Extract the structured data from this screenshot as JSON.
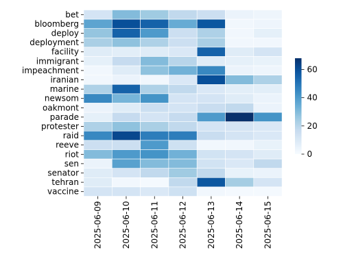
{
  "chart_data": {
    "type": "heatmap",
    "title": "",
    "xlabel": "",
    "ylabel": "",
    "colormap": "Blues",
    "rows": [
      "bet",
      "bloomberg",
      "deploy",
      "deployment",
      "facility",
      "immigrant",
      "impeachment",
      "iranian",
      "marine",
      "newsom",
      "oakmont",
      "parade",
      "protester",
      "raid",
      "reeve",
      "riot",
      "sen",
      "senator",
      "tehran",
      "vaccine"
    ],
    "columns": [
      "2025-06-09",
      "2025-06-10",
      "2025-06-11",
      "2025-06-12",
      "2025-06-13",
      "2025-06-14",
      "2025-06-15"
    ],
    "values": [
      [
        12,
        30,
        25,
        18,
        15,
        4,
        3
      ],
      [
        37,
        60,
        55,
        35,
        58,
        2,
        3
      ],
      [
        27,
        55,
        40,
        15,
        22,
        2,
        6
      ],
      [
        23,
        28,
        22,
        15,
        23,
        2,
        2
      ],
      [
        8,
        7,
        8,
        10,
        55,
        8,
        12
      ],
      [
        6,
        17,
        30,
        20,
        8,
        6,
        5
      ],
      [
        2,
        8,
        28,
        33,
        45,
        4,
        3
      ],
      [
        2,
        4,
        2,
        10,
        60,
        30,
        22
      ],
      [
        22,
        55,
        22,
        18,
        10,
        7,
        7
      ],
      [
        45,
        32,
        42,
        12,
        12,
        8,
        4
      ],
      [
        4,
        8,
        15,
        12,
        16,
        18,
        4
      ],
      [
        6,
        17,
        12,
        17,
        40,
        68,
        42
      ],
      [
        22,
        28,
        23,
        18,
        12,
        12,
        10
      ],
      [
        45,
        62,
        48,
        48,
        16,
        12,
        10
      ],
      [
        15,
        15,
        40,
        14,
        2,
        2,
        5
      ],
      [
        30,
        40,
        42,
        33,
        13,
        12,
        8
      ],
      [
        4,
        38,
        30,
        30,
        13,
        10,
        18
      ],
      [
        8,
        12,
        18,
        25,
        18,
        5,
        4
      ],
      [
        8,
        2,
        1,
        18,
        58,
        24,
        12
      ],
      [
        12,
        12,
        10,
        14,
        2,
        1,
        1
      ]
    ],
    "vmin": 0,
    "vmax": 68,
    "colorbar_ticks": [
      0,
      20,
      40,
      60
    ],
    "grid": false,
    "colorbar": "right"
  }
}
